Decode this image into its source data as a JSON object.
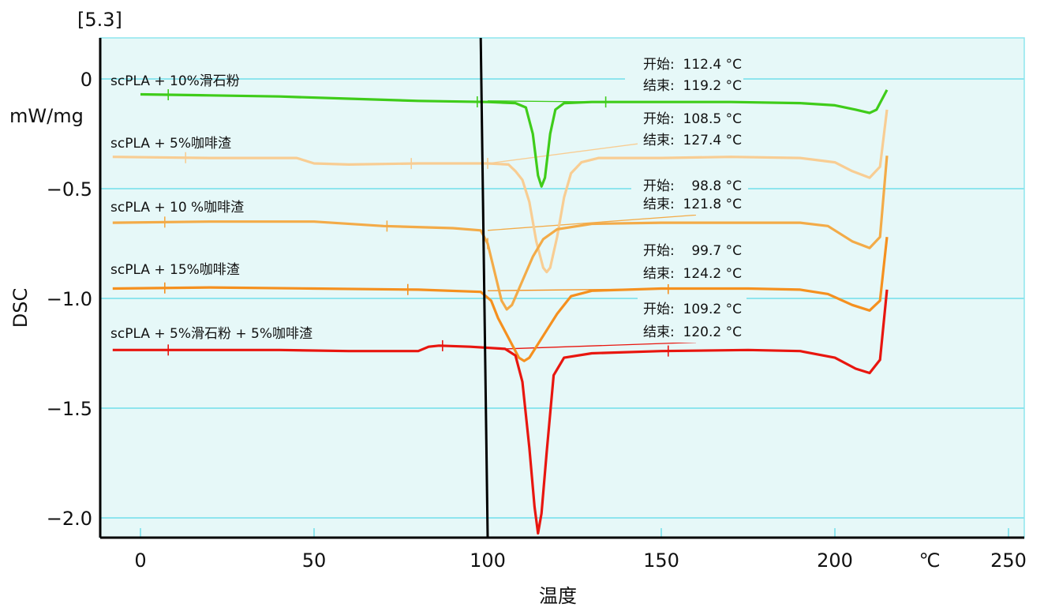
{
  "figure_label": "[5.3]",
  "chart_data": {
    "type": "line",
    "title": "",
    "xlabel": "温度",
    "x_unit": "℃",
    "ylabel": "DSC",
    "y_unit": "mW/mg",
    "xlim": [
      -12,
      255
    ],
    "ylim": [
      -2.09,
      0.19
    ],
    "xticks": [
      0,
      50,
      100,
      150,
      200,
      250
    ],
    "xtick_labels": [
      "0",
      "50",
      "100",
      "150",
      "200",
      "250"
    ],
    "yticks": [
      0,
      -0.5,
      -1.0,
      -1.5,
      -2.0
    ],
    "ytick_labels": [
      "0",
      "−0.5",
      "−1.0",
      "−1.5",
      "−2.0"
    ],
    "grid": "horizontal",
    "vertical_marker_line": {
      "x_top": 98,
      "x_bottom": 100
    },
    "series": [
      {
        "name": "scPLA + 10%滑石粉",
        "color": "#3fcc1a",
        "onset_label": "开始:",
        "onset": "112.4 °C",
        "end_label": "结束:",
        "end": "119.2 °C",
        "points": [
          [
            0,
            -0.07
          ],
          [
            20,
            -0.075
          ],
          [
            40,
            -0.08
          ],
          [
            60,
            -0.09
          ],
          [
            80,
            -0.1
          ],
          [
            100,
            -0.105
          ],
          [
            108,
            -0.11
          ],
          [
            111,
            -0.13
          ],
          [
            113,
            -0.25
          ],
          [
            114.5,
            -0.44
          ],
          [
            115.5,
            -0.49
          ],
          [
            116.5,
            -0.45
          ],
          [
            118,
            -0.25
          ],
          [
            119.5,
            -0.14
          ],
          [
            122,
            -0.11
          ],
          [
            130,
            -0.105
          ],
          [
            150,
            -0.105
          ],
          [
            170,
            -0.105
          ],
          [
            190,
            -0.11
          ],
          [
            200,
            -0.12
          ],
          [
            206,
            -0.14
          ],
          [
            210,
            -0.155
          ],
          [
            212,
            -0.14
          ],
          [
            214,
            -0.08
          ],
          [
            215,
            -0.05
          ]
        ]
      },
      {
        "name": "scPLA + 5%咖啡渣",
        "color": "#f8cd93",
        "onset_label": "开始:",
        "onset": "108.5 °C",
        "end_label": "结束:",
        "end": "127.4 °C",
        "points": [
          [
            -8,
            -0.355
          ],
          [
            20,
            -0.36
          ],
          [
            45,
            -0.36
          ],
          [
            50,
            -0.385
          ],
          [
            60,
            -0.39
          ],
          [
            80,
            -0.385
          ],
          [
            100,
            -0.385
          ],
          [
            106,
            -0.39
          ],
          [
            108,
            -0.42
          ],
          [
            110,
            -0.46
          ],
          [
            112,
            -0.56
          ],
          [
            114,
            -0.74
          ],
          [
            116,
            -0.86
          ],
          [
            117,
            -0.88
          ],
          [
            118,
            -0.86
          ],
          [
            120,
            -0.72
          ],
          [
            122,
            -0.54
          ],
          [
            124,
            -0.43
          ],
          [
            127,
            -0.38
          ],
          [
            132,
            -0.36
          ],
          [
            150,
            -0.36
          ],
          [
            170,
            -0.355
          ],
          [
            190,
            -0.36
          ],
          [
            200,
            -0.38
          ],
          [
            205,
            -0.42
          ],
          [
            210,
            -0.45
          ],
          [
            213,
            -0.4
          ],
          [
            215,
            -0.14
          ]
        ]
      },
      {
        "name": "scPLA + 10 %咖啡渣",
        "color": "#f3ab48",
        "onset_label": "开始:",
        "onset": "98.8 °C",
        "end_label": "结束:",
        "end": "121.8 °C",
        "points": [
          [
            -8,
            -0.655
          ],
          [
            20,
            -0.65
          ],
          [
            50,
            -0.65
          ],
          [
            70,
            -0.67
          ],
          [
            90,
            -0.68
          ],
          [
            98,
            -0.69
          ],
          [
            100,
            -0.75
          ],
          [
            102,
            -0.88
          ],
          [
            104,
            -1.01
          ],
          [
            105.5,
            -1.05
          ],
          [
            107,
            -1.03
          ],
          [
            110,
            -0.92
          ],
          [
            113,
            -0.81
          ],
          [
            116,
            -0.73
          ],
          [
            120,
            -0.685
          ],
          [
            130,
            -0.66
          ],
          [
            150,
            -0.655
          ],
          [
            170,
            -0.655
          ],
          [
            190,
            -0.655
          ],
          [
            198,
            -0.67
          ],
          [
            205,
            -0.74
          ],
          [
            210,
            -0.77
          ],
          [
            213,
            -0.72
          ],
          [
            215,
            -0.35
          ]
        ]
      },
      {
        "name": "scPLA + 15%咖啡渣",
        "color": "#f5901f",
        "onset_label": "开始:",
        "onset": "99.7 °C",
        "end_label": "结束:",
        "end": "124.2 °C",
        "points": [
          [
            -8,
            -0.955
          ],
          [
            20,
            -0.95
          ],
          [
            50,
            -0.955
          ],
          [
            80,
            -0.96
          ],
          [
            98,
            -0.97
          ],
          [
            101,
            -1.01
          ],
          [
            103,
            -1.09
          ],
          [
            106,
            -1.18
          ],
          [
            109,
            -1.27
          ],
          [
            110.5,
            -1.285
          ],
          [
            112,
            -1.27
          ],
          [
            116,
            -1.17
          ],
          [
            120,
            -1.07
          ],
          [
            124,
            -0.99
          ],
          [
            130,
            -0.965
          ],
          [
            150,
            -0.955
          ],
          [
            175,
            -0.955
          ],
          [
            190,
            -0.96
          ],
          [
            198,
            -0.98
          ],
          [
            205,
            -1.03
          ],
          [
            210,
            -1.055
          ],
          [
            213,
            -1.01
          ],
          [
            215,
            -0.72
          ]
        ]
      },
      {
        "name": "scPLA + 5%滑石粉 + 5%咖啡渣",
        "color": "#e8160f",
        "onset_label": "开始:",
        "onset": "109.2 °C",
        "end_label": "结束:",
        "end": "120.2 °C",
        "points": [
          [
            -8,
            -1.235
          ],
          [
            20,
            -1.235
          ],
          [
            40,
            -1.235
          ],
          [
            60,
            -1.24
          ],
          [
            80,
            -1.24
          ],
          [
            83,
            -1.22
          ],
          [
            86,
            -1.215
          ],
          [
            95,
            -1.22
          ],
          [
            105,
            -1.23
          ],
          [
            108,
            -1.26
          ],
          [
            110,
            -1.38
          ],
          [
            112,
            -1.68
          ],
          [
            113.5,
            -1.95
          ],
          [
            114.5,
            -2.07
          ],
          [
            115.5,
            -1.98
          ],
          [
            117,
            -1.7
          ],
          [
            119,
            -1.35
          ],
          [
            122,
            -1.27
          ],
          [
            130,
            -1.25
          ],
          [
            150,
            -1.24
          ],
          [
            175,
            -1.235
          ],
          [
            190,
            -1.24
          ],
          [
            200,
            -1.27
          ],
          [
            206,
            -1.32
          ],
          [
            210,
            -1.34
          ],
          [
            213,
            -1.28
          ],
          [
            215,
            -0.96
          ]
        ]
      }
    ]
  }
}
